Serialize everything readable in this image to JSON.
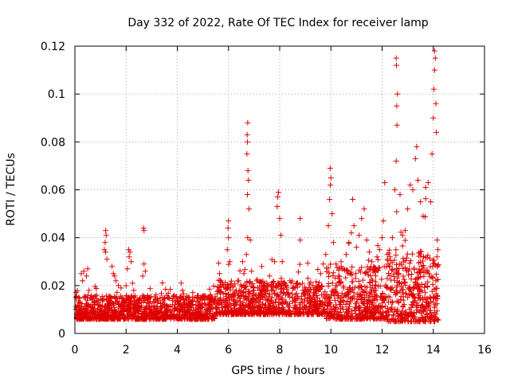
{
  "chart_data": {
    "type": "scatter",
    "title": "Day 332 of 2022, Rate Of TEC Index for receiver lamp",
    "xlabel": "GPS time / hours",
    "ylabel": "ROTI / TECUs",
    "xlim": [
      0,
      16
    ],
    "ylim": [
      0,
      0.12
    ],
    "xticks": [
      0,
      2,
      4,
      6,
      8,
      10,
      12,
      14,
      16
    ],
    "yticks": [
      0,
      0.02,
      0.04,
      0.06,
      0.08,
      0.1,
      0.12
    ],
    "xtick_labels": [
      "0",
      "2",
      "4",
      "6",
      "8",
      "10",
      "12",
      "14",
      "16"
    ],
    "ytick_labels": [
      "0",
      "0.02",
      "0.04",
      "0.06",
      "0.08",
      "0.1",
      "0.12"
    ],
    "grid": true,
    "marker": "+",
    "color": "#e00000",
    "x_extent_hours": [
      0,
      14.2
    ],
    "series": [
      {
        "name": "ROTI",
        "points": [
          [
            0.05,
            0.01
          ],
          [
            0.1,
            0.008
          ],
          [
            0.15,
            0.013
          ],
          [
            0.2,
            0.006
          ],
          [
            0.25,
            0.011
          ],
          [
            0.3,
            0.009
          ],
          [
            0.35,
            0.015
          ],
          [
            0.4,
            0.007
          ],
          [
            0.45,
            0.012
          ],
          [
            0.5,
            0.01
          ],
          [
            0.55,
            0.018
          ],
          [
            0.6,
            0.006
          ],
          [
            0.65,
            0.011
          ],
          [
            0.7,
            0.009
          ],
          [
            0.75,
            0.013
          ],
          [
            0.8,
            0.008
          ],
          [
            0.85,
            0.016
          ],
          [
            0.9,
            0.007
          ],
          [
            0.95,
            0.012
          ],
          [
            1.0,
            0.01
          ],
          [
            1.05,
            0.009
          ],
          [
            1.1,
            0.014
          ],
          [
            1.15,
            0.008
          ],
          [
            1.2,
            0.011
          ],
          [
            0.25,
            0.025
          ],
          [
            0.35,
            0.026
          ],
          [
            0.45,
            0.024
          ],
          [
            0.5,
            0.027
          ],
          [
            0.3,
            0.022
          ],
          [
            1.2,
            0.043
          ],
          [
            1.22,
            0.041
          ],
          [
            1.18,
            0.038
          ],
          [
            1.15,
            0.035
          ],
          [
            1.2,
            0.034
          ],
          [
            1.25,
            0.031
          ],
          [
            1.3,
            0.01
          ],
          [
            1.4,
            0.012
          ],
          [
            1.5,
            0.008
          ],
          [
            1.6,
            0.015
          ],
          [
            1.7,
            0.011
          ],
          [
            1.8,
            0.009
          ],
          [
            1.9,
            0.014
          ],
          [
            2.0,
            0.01
          ],
          [
            1.5,
            0.025
          ],
          [
            1.6,
            0.022
          ],
          [
            1.7,
            0.02
          ],
          [
            1.8,
            0.019
          ],
          [
            1.45,
            0.028
          ],
          [
            1.55,
            0.024
          ],
          [
            2.1,
            0.035
          ],
          [
            2.15,
            0.034
          ],
          [
            2.12,
            0.032
          ],
          [
            2.2,
            0.03
          ],
          [
            2.05,
            0.027
          ],
          [
            2.25,
            0.021
          ],
          [
            2.3,
            0.018
          ],
          [
            2.4,
            0.012
          ],
          [
            2.5,
            0.01
          ],
          [
            2.6,
            0.013
          ],
          [
            2.65,
            0.024
          ],
          [
            2.7,
            0.029
          ],
          [
            2.75,
            0.026
          ],
          [
            2.68,
            0.044
          ],
          [
            2.7,
            0.043
          ],
          [
            2.8,
            0.015
          ],
          [
            2.9,
            0.011
          ],
          [
            3.0,
            0.008
          ],
          [
            3.1,
            0.01
          ],
          [
            3.2,
            0.007
          ],
          [
            3.3,
            0.009
          ],
          [
            3.4,
            0.011
          ],
          [
            3.5,
            0.008
          ],
          [
            3.6,
            0.01
          ],
          [
            3.7,
            0.007
          ],
          [
            3.8,
            0.009
          ],
          [
            3.9,
            0.012
          ],
          [
            4.0,
            0.01
          ],
          [
            4.1,
            0.015
          ],
          [
            4.15,
            0.021
          ],
          [
            4.2,
            0.018
          ],
          [
            4.3,
            0.011
          ],
          [
            4.4,
            0.009
          ],
          [
            4.5,
            0.012
          ],
          [
            4.6,
            0.014
          ],
          [
            4.7,
            0.01
          ],
          [
            4.8,
            0.013
          ],
          [
            4.9,
            0.011
          ],
          [
            5.0,
            0.015
          ],
          [
            5.1,
            0.012
          ],
          [
            5.2,
            0.01
          ],
          [
            5.3,
            0.016
          ],
          [
            5.4,
            0.013
          ],
          [
            5.5,
            0.011
          ],
          [
            5.6,
            0.018
          ],
          [
            5.65,
            0.025
          ],
          [
            5.7,
            0.022
          ],
          [
            5.8,
            0.014
          ],
          [
            5.9,
            0.019
          ],
          [
            5.95,
            0.035
          ],
          [
            6.0,
            0.04
          ],
          [
            5.98,
            0.044
          ],
          [
            6.0,
            0.047
          ],
          [
            6.05,
            0.03
          ],
          [
            6.1,
            0.02
          ],
          [
            6.2,
            0.015
          ],
          [
            6.3,
            0.018
          ],
          [
            6.4,
            0.022
          ],
          [
            6.5,
            0.016
          ],
          [
            6.55,
            0.03
          ],
          [
            6.6,
            0.025
          ],
          [
            6.7,
            0.033
          ],
          [
            6.75,
            0.04
          ],
          [
            6.75,
            0.088
          ],
          [
            6.73,
            0.083
          ],
          [
            6.74,
            0.08
          ],
          [
            6.72,
            0.075
          ],
          [
            6.76,
            0.068
          ],
          [
            6.78,
            0.064
          ],
          [
            6.74,
            0.058
          ],
          [
            6.8,
            0.052
          ],
          [
            6.85,
            0.039
          ],
          [
            6.9,
            0.026
          ],
          [
            7.0,
            0.018
          ],
          [
            7.1,
            0.022
          ],
          [
            7.2,
            0.019
          ],
          [
            7.3,
            0.028
          ],
          [
            7.4,
            0.016
          ],
          [
            7.5,
            0.021
          ],
          [
            7.6,
            0.024
          ],
          [
            7.7,
            0.018
          ],
          [
            7.8,
            0.03
          ],
          [
            7.9,
            0.053
          ],
          [
            7.95,
            0.059
          ],
          [
            7.92,
            0.057
          ],
          [
            8.0,
            0.048
          ],
          [
            8.05,
            0.041
          ],
          [
            8.1,
            0.03
          ],
          [
            8.2,
            0.02
          ],
          [
            8.3,
            0.017
          ],
          [
            8.4,
            0.022
          ],
          [
            8.5,
            0.015
          ],
          [
            8.6,
            0.019
          ],
          [
            8.7,
            0.021
          ],
          [
            8.8,
            0.048
          ],
          [
            8.8,
            0.039
          ],
          [
            8.9,
            0.018
          ],
          [
            9.0,
            0.016
          ],
          [
            9.1,
            0.023
          ],
          [
            9.2,
            0.015
          ],
          [
            9.3,
            0.02
          ],
          [
            9.4,
            0.012
          ],
          [
            9.5,
            0.019
          ],
          [
            9.6,
            0.025
          ],
          [
            9.7,
            0.029
          ],
          [
            9.8,
            0.033
          ],
          [
            9.9,
            0.045
          ],
          [
            9.95,
            0.056
          ],
          [
            9.98,
            0.062
          ],
          [
            9.97,
            0.069
          ],
          [
            10.0,
            0.065
          ],
          [
            10.05,
            0.05
          ],
          [
            10.1,
            0.038
          ],
          [
            10.2,
            0.029
          ],
          [
            10.3,
            0.024
          ],
          [
            10.4,
            0.03
          ],
          [
            10.5,
            0.027
          ],
          [
            10.6,
            0.033
          ],
          [
            10.7,
            0.038
          ],
          [
            10.8,
            0.042
          ],
          [
            10.85,
            0.056
          ],
          [
            10.9,
            0.045
          ],
          [
            11.0,
            0.036
          ],
          [
            11.1,
            0.041
          ],
          [
            11.2,
            0.048
          ],
          [
            11.3,
            0.052
          ],
          [
            11.4,
            0.039
          ],
          [
            11.5,
            0.034
          ],
          [
            11.6,
            0.03
          ],
          [
            11.7,
            0.027
          ],
          [
            11.8,
            0.032
          ],
          [
            11.9,
            0.035
          ],
          [
            12.0,
            0.04
          ],
          [
            12.05,
            0.047
          ],
          [
            12.1,
            0.063
          ],
          [
            12.2,
            0.033
          ],
          [
            12.3,
            0.028
          ],
          [
            12.4,
            0.04
          ],
          [
            12.5,
            0.06
          ],
          [
            12.55,
            0.072
          ],
          [
            12.58,
            0.087
          ],
          [
            12.57,
            0.095
          ],
          [
            12.6,
            0.1
          ],
          [
            12.55,
            0.115
          ],
          [
            12.56,
            0.112
          ],
          [
            12.7,
            0.058
          ],
          [
            12.8,
            0.041
          ],
          [
            12.9,
            0.043
          ],
          [
            13.0,
            0.052
          ],
          [
            13.1,
            0.062
          ],
          [
            13.2,
            0.06
          ],
          [
            13.3,
            0.073
          ],
          [
            13.35,
            0.078
          ],
          [
            13.4,
            0.064
          ],
          [
            13.5,
            0.055
          ],
          [
            13.6,
            0.049
          ],
          [
            13.7,
            0.061
          ],
          [
            13.8,
            0.063
          ],
          [
            13.9,
            0.055
          ],
          [
            13.95,
            0.075
          ],
          [
            14.0,
            0.09
          ],
          [
            14.02,
            0.102
          ],
          [
            14.05,
            0.11
          ],
          [
            14.05,
            0.118
          ],
          [
            14.08,
            0.115
          ],
          [
            14.1,
            0.096
          ],
          [
            14.12,
            0.084
          ],
          [
            14.15,
            0.039
          ],
          [
            14.15,
            0.032
          ],
          [
            14.18,
            0.035
          ],
          [
            14.1,
            0.022
          ],
          [
            10.2,
            0.012
          ],
          [
            10.4,
            0.015
          ],
          [
            10.6,
            0.01
          ],
          [
            10.8,
            0.018
          ],
          [
            11.0,
            0.013
          ],
          [
            11.2,
            0.009
          ],
          [
            11.4,
            0.016
          ],
          [
            11.6,
            0.012
          ],
          [
            11.8,
            0.014
          ],
          [
            12.0,
            0.011
          ],
          [
            12.2,
            0.019
          ],
          [
            12.4,
            0.013
          ],
          [
            12.6,
            0.01
          ],
          [
            12.8,
            0.017
          ],
          [
            13.0,
            0.015
          ],
          [
            13.2,
            0.012
          ],
          [
            13.4,
            0.02
          ],
          [
            13.6,
            0.014
          ],
          [
            13.8,
            0.011
          ],
          [
            14.0,
            0.013
          ],
          [
            14.1,
            0.008
          ],
          [
            14.15,
            0.006
          ]
        ]
      }
    ]
  }
}
